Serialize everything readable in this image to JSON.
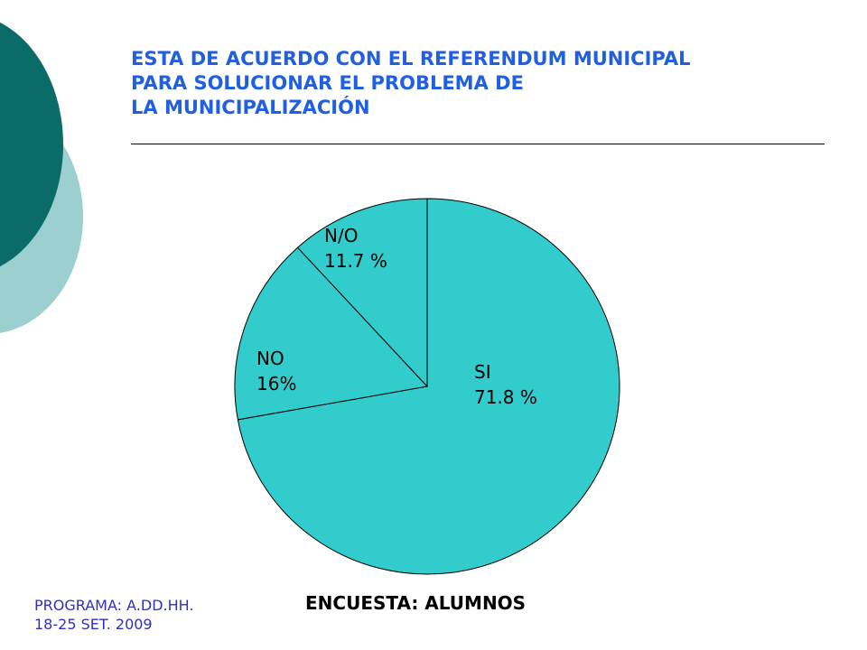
{
  "page": {
    "title_lines": [
      "ESTA DE ACUERDO CON  EL REFERENDUM MUNICIPAL",
      "PARA SOLUCIONAR EL PROBLEMA DE",
      "LA MUNICIPALIZACIÓN"
    ],
    "footer_left_lines": [
      "PROGRAMA: A.DD.HH.",
      "18-25 SET. 2009"
    ],
    "footer_center": "ENCUESTA: ALUMNOS"
  },
  "colors": {
    "title": "#2060e0",
    "slice_fill": "#33cccc",
    "slice_stroke": "#000000",
    "deco_dark": "#0b6b66",
    "deco_light": "#9ccfcf",
    "footer_left": "#3030c0"
  },
  "chart_data": {
    "type": "pie",
    "title": "ESTA DE ACUERDO CON  EL REFERENDUM MUNICIPAL PARA SOLUCIONAR EL PROBLEMA DE LA MUNICIPALIZACIÓN",
    "slices": [
      {
        "name": "SI",
        "value": 71.8,
        "label_value": "71.8 %"
      },
      {
        "name": "NO",
        "value": 16,
        "label_value": "16%"
      },
      {
        "name": "N/O",
        "value": 11.7,
        "label_value": "11.7 %"
      }
    ],
    "legend": "none",
    "grid": false
  }
}
